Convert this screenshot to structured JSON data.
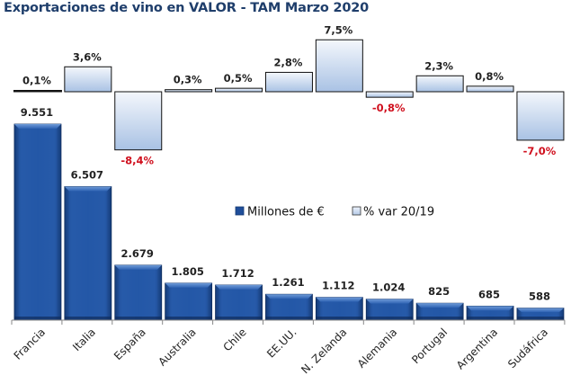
{
  "chart_data": {
    "type": "bar",
    "title": "Exportaciones de vino en VALOR - TAM Marzo 2020",
    "categories": [
      "Francia",
      "Italia",
      "España",
      "Australia",
      "Chile",
      "EE.UU.",
      "N. Zelanda",
      "Alemania",
      "Portugal",
      "Argentina",
      "Sudáfrica"
    ],
    "series": [
      {
        "name": "Millones de €",
        "values": [
          9551,
          6507,
          2679,
          1805,
          1712,
          1261,
          1112,
          1024,
          825,
          685,
          588
        ],
        "labels": [
          "9.551",
          "6.507",
          "2.679",
          "1.805",
          "1.712",
          "1.261",
          "1.112",
          "1.024",
          "825",
          "685",
          "588"
        ],
        "color": "#1f4e9a"
      },
      {
        "name": "% var 20/19",
        "values": [
          0.1,
          3.6,
          -8.4,
          0.3,
          0.5,
          2.8,
          7.5,
          -0.8,
          2.3,
          0.8,
          -7.0
        ],
        "labels": [
          "0,1%",
          "3,6%",
          "-8,4%",
          "0,3%",
          "0,5%",
          "2,8%",
          "7,5%",
          "-0,8%",
          "2,3%",
          "0,8%",
          "-7,0%"
        ],
        "color": "#c6d7ee",
        "negative_label_color": "#d0101e"
      }
    ],
    "legend": [
      "Millones de €",
      "% var 20/19"
    ],
    "legend_position": "center",
    "xlabel": "",
    "ylabel": "",
    "grid": false
  }
}
